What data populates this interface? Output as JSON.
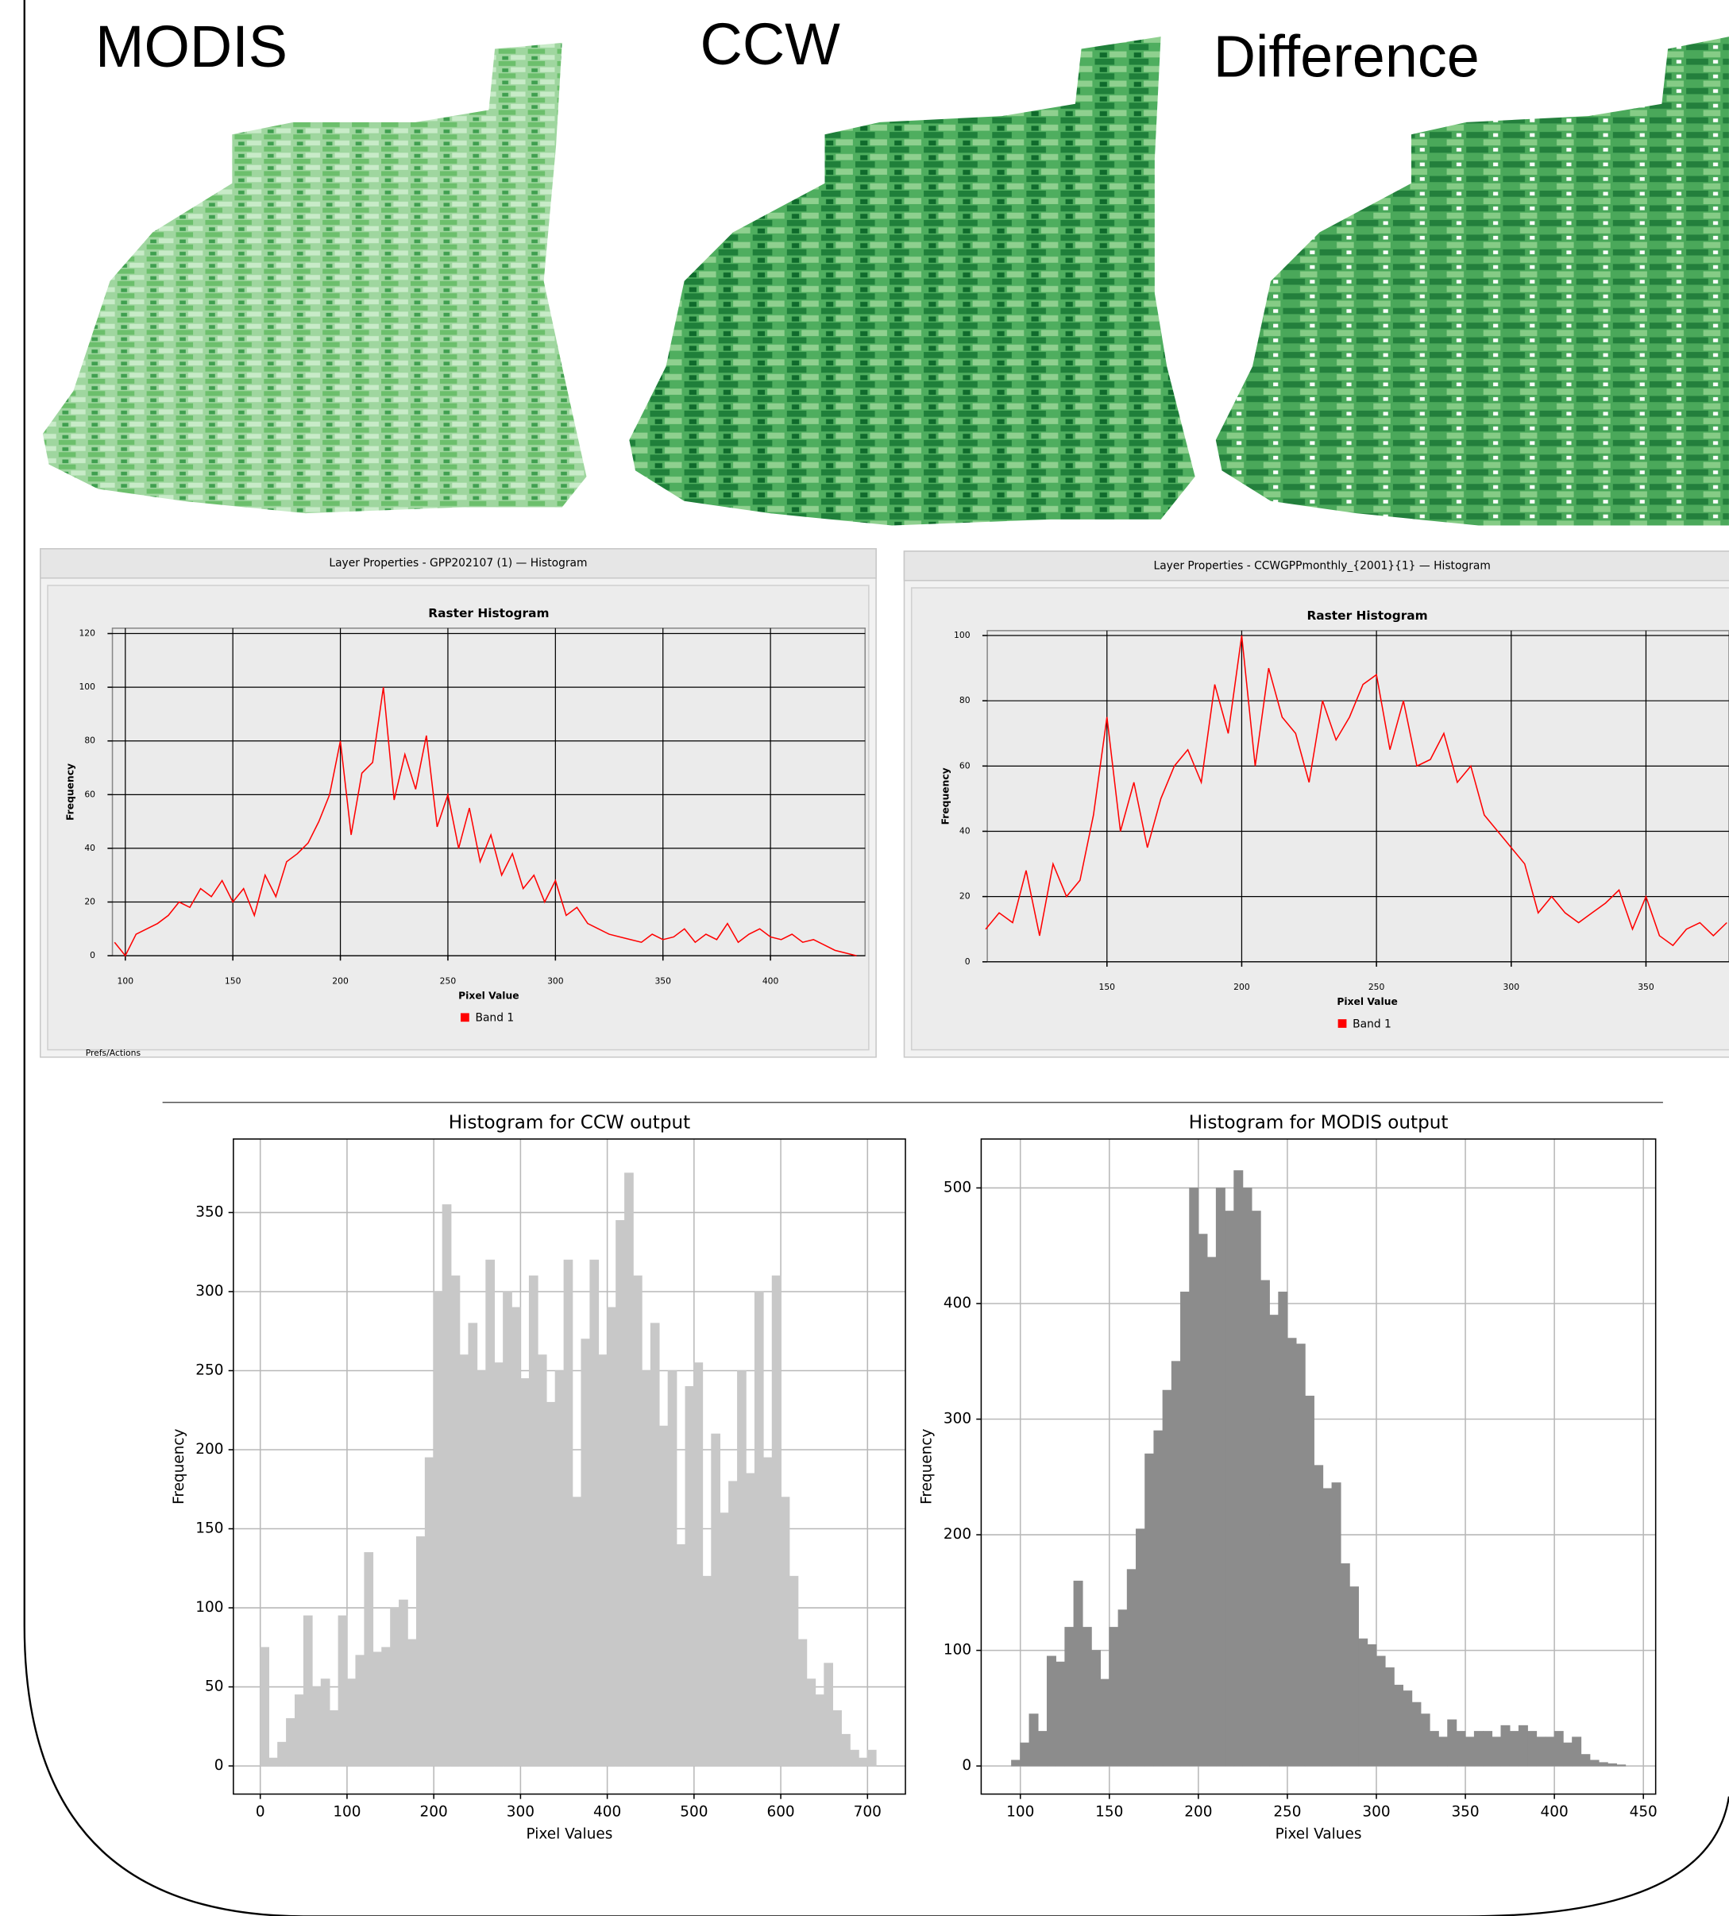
{
  "map_titles": [
    "MODIS",
    "CCW",
    "Difference"
  ],
  "chart_data": [
    {
      "type": "line",
      "window_title": "Layer Properties - GPP202107 (1) — Histogram",
      "title": "Raster Histogram",
      "xlabel": "Pixel Value",
      "ylabel": "Frequency",
      "footer": "Prefs/Actions",
      "x": [
        95,
        100,
        105,
        110,
        115,
        120,
        125,
        130,
        135,
        140,
        145,
        150,
        155,
        160,
        165,
        170,
        175,
        180,
        185,
        190,
        195,
        200,
        205,
        210,
        215,
        220,
        225,
        230,
        235,
        240,
        245,
        250,
        255,
        260,
        265,
        270,
        275,
        280,
        285,
        290,
        295,
        300,
        305,
        310,
        315,
        320,
        325,
        330,
        335,
        340,
        345,
        350,
        355,
        360,
        365,
        370,
        375,
        380,
        385,
        390,
        395,
        400,
        405,
        410,
        415,
        420,
        425,
        430,
        435,
        440
      ],
      "series": [
        {
          "name": "Band 1",
          "color": "#ff0000",
          "values": [
            5,
            0,
            8,
            10,
            12,
            15,
            20,
            18,
            25,
            22,
            28,
            20,
            25,
            15,
            30,
            22,
            35,
            38,
            42,
            50,
            60,
            80,
            45,
            68,
            72,
            100,
            58,
            75,
            62,
            82,
            48,
            60,
            40,
            55,
            35,
            45,
            30,
            38,
            25,
            30,
            20,
            28,
            15,
            18,
            12,
            10,
            8,
            7,
            6,
            5,
            8,
            6,
            7,
            10,
            5,
            8,
            6,
            12,
            5,
            8,
            10,
            7,
            6,
            8,
            5,
            6,
            4,
            2,
            1,
            0
          ]
        }
      ],
      "xlim": [
        94,
        444
      ],
      "xticks": [
        100,
        150,
        200,
        250,
        300,
        350,
        400
      ],
      "ylim": [
        0,
        122
      ],
      "yticks": [
        0,
        20,
        40,
        60,
        80,
        100,
        120
      ],
      "grid": true
    },
    {
      "type": "line",
      "window_title": "Layer Properties - CCWGPPmonthly_{2001}{1} — Histogram",
      "title": "Raster Histogram",
      "xlabel": "Pixel Value",
      "ylabel": "Frequency",
      "x": [
        105,
        110,
        115,
        120,
        125,
        130,
        135,
        140,
        145,
        150,
        155,
        160,
        165,
        170,
        175,
        180,
        185,
        190,
        195,
        200,
        205,
        210,
        215,
        220,
        225,
        230,
        235,
        240,
        245,
        250,
        255,
        260,
        265,
        270,
        275,
        280,
        285,
        290,
        295,
        300,
        305,
        310,
        315,
        320,
        325,
        330,
        335,
        340,
        345,
        350,
        355,
        360,
        365,
        370,
        375,
        380
      ],
      "series": [
        {
          "name": "Band 1",
          "color": "#ff0000",
          "values": [
            10,
            15,
            12,
            28,
            8,
            30,
            20,
            25,
            45,
            75,
            40,
            55,
            35,
            50,
            60,
            65,
            55,
            85,
            70,
            100,
            60,
            90,
            75,
            70,
            55,
            80,
            68,
            75,
            85,
            88,
            65,
            80,
            60,
            62,
            70,
            55,
            60,
            45,
            40,
            35,
            30,
            15,
            20,
            15,
            12,
            15,
            18,
            22,
            10,
            20,
            8,
            5,
            10,
            12,
            8,
            12
          ]
        }
      ],
      "xlim": [
        105.6,
        380.8
      ],
      "xticks": [
        150,
        200,
        250,
        300,
        350
      ],
      "ylim": [
        0,
        101.5
      ],
      "yticks": [
        0,
        20,
        40,
        60,
        80,
        100
      ],
      "grid": true
    },
    {
      "type": "histogram",
      "title": "Histogram for CCW output",
      "xlabel": "Pixel Values",
      "ylabel": "Frequency",
      "color": "#c8c8c8",
      "bins": [
        0,
        10,
        20,
        30,
        40,
        50,
        60,
        70,
        80,
        90,
        100,
        110,
        120,
        130,
        140,
        150,
        160,
        170,
        180,
        190,
        200,
        210,
        220,
        230,
        240,
        250,
        260,
        270,
        280,
        290,
        300,
        310,
        320,
        330,
        340,
        350,
        360,
        370,
        380,
        390,
        400,
        410,
        420,
        430,
        440,
        450,
        460,
        470,
        480,
        490,
        500,
        510,
        520,
        530,
        540,
        550,
        560,
        570,
        580,
        590,
        600,
        610,
        620,
        630,
        640,
        650,
        660,
        670,
        680,
        690,
        700,
        710
      ],
      "values": [
        75,
        5,
        15,
        30,
        45,
        95,
        50,
        55,
        35,
        95,
        55,
        70,
        135,
        72,
        75,
        100,
        105,
        80,
        145,
        195,
        300,
        355,
        310,
        260,
        280,
        250,
        320,
        255,
        300,
        290,
        245,
        310,
        260,
        230,
        250,
        320,
        170,
        270,
        320,
        260,
        290,
        345,
        375,
        310,
        250,
        280,
        215,
        250,
        140,
        240,
        255,
        120,
        210,
        160,
        180,
        250,
        185,
        300,
        195,
        310,
        170,
        120,
        80,
        55,
        45,
        65,
        35,
        20,
        10,
        5,
        10
      ],
      "xlim": [
        -31,
        743.7
      ],
      "xticks": [
        0,
        100,
        200,
        300,
        400,
        500,
        600,
        700
      ],
      "ylim": [
        -17.8,
        396.5
      ],
      "yticks": [
        0,
        50,
        100,
        150,
        200,
        250,
        300,
        350
      ],
      "grid": true
    },
    {
      "type": "histogram",
      "title": "Histogram for MODIS output",
      "xlabel": "Pixel Values",
      "ylabel": "Frequency",
      "color": "#8c8c8c",
      "bins": [
        95,
        100,
        105,
        110,
        115,
        120,
        125,
        130,
        135,
        140,
        145,
        150,
        155,
        160,
        165,
        170,
        175,
        180,
        185,
        190,
        195,
        200,
        205,
        210,
        215,
        220,
        225,
        230,
        235,
        240,
        245,
        250,
        255,
        260,
        265,
        270,
        275,
        280,
        285,
        290,
        295,
        300,
        305,
        310,
        315,
        320,
        325,
        330,
        335,
        340,
        345,
        350,
        355,
        360,
        365,
        370,
        375,
        380,
        385,
        390,
        395,
        400,
        405,
        410,
        415,
        420,
        425,
        430,
        435,
        440
      ],
      "values": [
        5,
        20,
        45,
        30,
        95,
        90,
        120,
        160,
        120,
        100,
        75,
        120,
        135,
        170,
        205,
        270,
        290,
        325,
        350,
        410,
        500,
        460,
        440,
        500,
        480,
        515,
        500,
        480,
        420,
        390,
        410,
        370,
        365,
        320,
        260,
        240,
        245,
        175,
        155,
        110,
        105,
        95,
        85,
        70,
        65,
        55,
        45,
        30,
        25,
        40,
        30,
        25,
        30,
        30,
        25,
        35,
        30,
        35,
        30,
        25,
        25,
        30,
        20,
        25,
        10,
        5,
        3,
        2,
        1
      ],
      "xlim": [
        78,
        456.9
      ],
      "xticks": [
        100,
        150,
        200,
        250,
        300,
        350,
        400,
        450
      ],
      "ylim": [
        -24.3,
        542.3
      ],
      "yticks": [
        0,
        100,
        200,
        300,
        400,
        500
      ],
      "grid": true
    }
  ]
}
